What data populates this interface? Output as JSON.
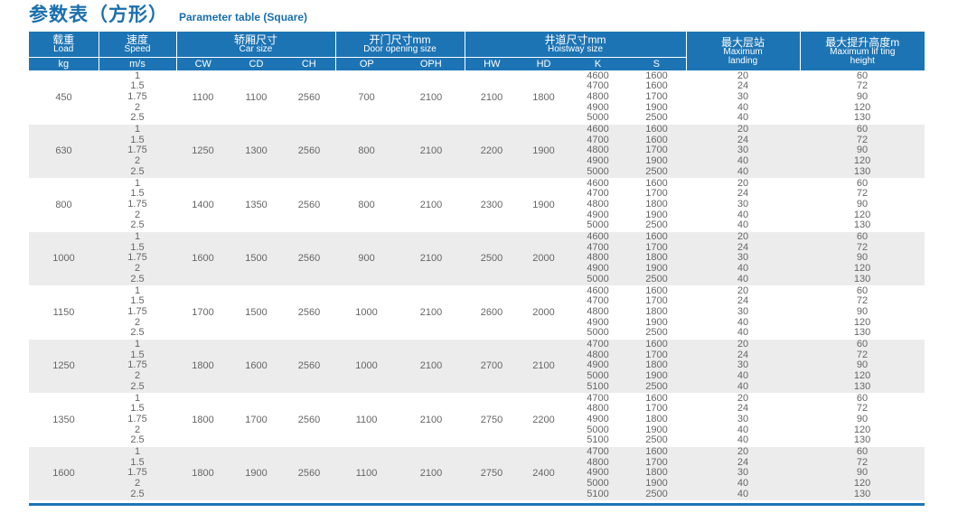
{
  "title": {
    "cn": "参数表（方形）",
    "en": "Parameter table (Square)"
  },
  "headers": {
    "load": {
      "cn": "载重",
      "en": "Load",
      "unit": "kg"
    },
    "speed": {
      "cn": "速度",
      "en": "Speed",
      "unit": "m/s"
    },
    "car": {
      "cn": "轿厢尺寸",
      "en": "Car size",
      "cols": [
        "CW",
        "CD",
        "CH"
      ]
    },
    "door": {
      "cn": "开门尺寸mm",
      "en": "Door opening size",
      "cols": [
        "OP",
        "OPH"
      ]
    },
    "hoistway": {
      "cn": "井道尺寸mm",
      "en": "Hoistway size",
      "cols": [
        "HW",
        "HD",
        "K",
        "S"
      ]
    },
    "landing": {
      "cn": "最大层站",
      "en1": "Maximum",
      "en2": "landing"
    },
    "height": {
      "cn": "最大提升高度m",
      "en1": "Maximum lif ting",
      "en2": "height"
    }
  },
  "rows": [
    {
      "load": "450",
      "speed": [
        "1",
        "1.5",
        "1.75",
        "2",
        "2.5"
      ],
      "cw": "1100",
      "cd": "1100",
      "ch": "2560",
      "op": "700",
      "oph": "2100",
      "hw": "2100",
      "hd": "1800",
      "k": [
        "4600",
        "4700",
        "4800",
        "4900",
        "5000"
      ],
      "s": [
        "1600",
        "1600",
        "1700",
        "1900",
        "2500"
      ],
      "landing": [
        "20",
        "24",
        "30",
        "40",
        "40"
      ],
      "height": [
        "60",
        "72",
        "90",
        "120",
        "130"
      ]
    },
    {
      "load": "630",
      "speed": [
        "1",
        "1.5",
        "1.75",
        "2",
        "2.5"
      ],
      "cw": "1250",
      "cd": "1300",
      "ch": "2560",
      "op": "800",
      "oph": "2100",
      "hw": "2200",
      "hd": "1900",
      "k": [
        "4600",
        "4700",
        "4800",
        "4900",
        "5000"
      ],
      "s": [
        "1600",
        "1600",
        "1700",
        "1900",
        "2500"
      ],
      "landing": [
        "20",
        "24",
        "30",
        "40",
        "40"
      ],
      "height": [
        "60",
        "72",
        "90",
        "120",
        "130"
      ]
    },
    {
      "load": "800",
      "speed": [
        "1",
        "1.5",
        "1.75",
        "2",
        "2.5"
      ],
      "cw": "1400",
      "cd": "1350",
      "ch": "2560",
      "op": "800",
      "oph": "2100",
      "hw": "2300",
      "hd": "1900",
      "k": [
        "4600",
        "4700",
        "4800",
        "4900",
        "5000"
      ],
      "s": [
        "1600",
        "1700",
        "1800",
        "1900",
        "2500"
      ],
      "landing": [
        "20",
        "24",
        "30",
        "40",
        "40"
      ],
      "height": [
        "60",
        "72",
        "90",
        "120",
        "130"
      ]
    },
    {
      "load": "1000",
      "speed": [
        "1",
        "1.5",
        "1.75",
        "2",
        "2.5"
      ],
      "cw": "1600",
      "cd": "1500",
      "ch": "2560",
      "op": "900",
      "oph": "2100",
      "hw": "2500",
      "hd": "2000",
      "k": [
        "4600",
        "4700",
        "4800",
        "4900",
        "5000"
      ],
      "s": [
        "1600",
        "1700",
        "1800",
        "1900",
        "2500"
      ],
      "landing": [
        "20",
        "24",
        "30",
        "40",
        "40"
      ],
      "height": [
        "60",
        "72",
        "90",
        "120",
        "130"
      ]
    },
    {
      "load": "1150",
      "speed": [
        "1",
        "1.5",
        "1.75",
        "2",
        "2.5"
      ],
      "cw": "1700",
      "cd": "1500",
      "ch": "2560",
      "op": "1000",
      "oph": "2100",
      "hw": "2600",
      "hd": "2000",
      "k": [
        "4600",
        "4700",
        "4800",
        "4900",
        "5000"
      ],
      "s": [
        "1600",
        "1700",
        "1800",
        "1900",
        "2500"
      ],
      "landing": [
        "20",
        "24",
        "30",
        "40",
        "40"
      ],
      "height": [
        "60",
        "72",
        "90",
        "120",
        "130"
      ]
    },
    {
      "load": "1250",
      "speed": [
        "1",
        "1.5",
        "1.75",
        "2",
        "2.5"
      ],
      "cw": "1800",
      "cd": "1600",
      "ch": "2560",
      "op": "1000",
      "oph": "2100",
      "hw": "2700",
      "hd": "2100",
      "k": [
        "4700",
        "4800",
        "4900",
        "5000",
        "5100"
      ],
      "s": [
        "1600",
        "1700",
        "1800",
        "1900",
        "2500"
      ],
      "landing": [
        "20",
        "24",
        "30",
        "40",
        "40"
      ],
      "height": [
        "60",
        "72",
        "90",
        "120",
        "130"
      ]
    },
    {
      "load": "1350",
      "speed": [
        "1",
        "1.5",
        "1.75",
        "2",
        "2.5"
      ],
      "cw": "1800",
      "cd": "1700",
      "ch": "2560",
      "op": "1100",
      "oph": "2100",
      "hw": "2750",
      "hd": "2200",
      "k": [
        "4700",
        "4800",
        "4900",
        "5000",
        "5100"
      ],
      "s": [
        "1600",
        "1700",
        "1800",
        "1900",
        "2500"
      ],
      "landing": [
        "20",
        "24",
        "30",
        "40",
        "40"
      ],
      "height": [
        "60",
        "72",
        "90",
        "120",
        "130"
      ]
    },
    {
      "load": "1600",
      "speed": [
        "1",
        "1.5",
        "1.75",
        "2",
        "2.5"
      ],
      "cw": "1800",
      "cd": "1900",
      "ch": "2560",
      "op": "1100",
      "oph": "2100",
      "hw": "2750",
      "hd": "2400",
      "k": [
        "4700",
        "4800",
        "4900",
        "5000",
        "5100"
      ],
      "s": [
        "1600",
        "1700",
        "1800",
        "1900",
        "2500"
      ],
      "landing": [
        "20",
        "24",
        "30",
        "40",
        "40"
      ],
      "height": [
        "60",
        "72",
        "90",
        "120",
        "130"
      ]
    }
  ]
}
